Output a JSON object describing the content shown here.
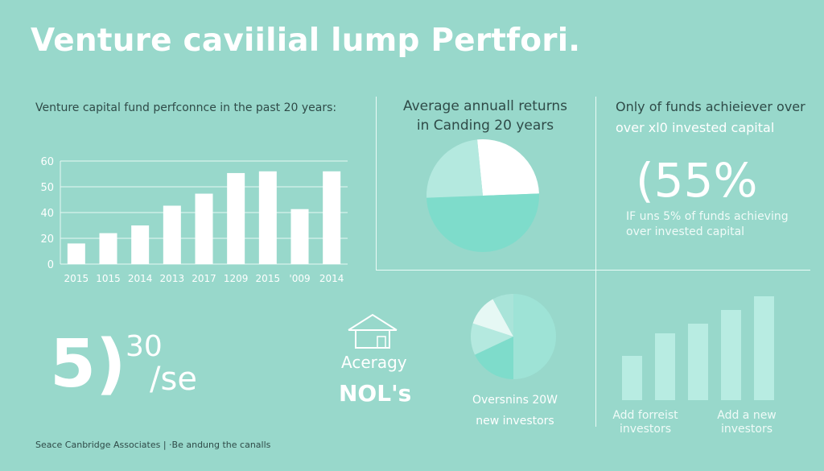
{
  "title": "Venture caviilial lump Pertfori.",
  "bar_section": {
    "subtitle": "Venture capital fund perfconnce in the past 20 years:"
  },
  "pie_section": {
    "heading_line1": "Average annuall returns",
    "heading_line2": "in Canding 20 years"
  },
  "stat_section": {
    "heading_line1": "Only of funds achieiever over",
    "heading_line2": "over xl0 invested capital",
    "big_value": "(55%",
    "sub_line1": "IF uns 5% of funds achieving",
    "sub_line2": "over invested capital"
  },
  "bottom_left": {
    "big": "5)",
    "sup": "30",
    "rest": "/se"
  },
  "house_block": {
    "icon": "house-icon",
    "line1": "Aceragy",
    "line2": "NOL's"
  },
  "small_pie_block": {
    "line1": "Oversnins 20W",
    "line2": "new investors"
  },
  "growth_block": {
    "label_left_1": "Add forreist",
    "label_left_2": "investors",
    "label_right_1": "Add a new",
    "label_right_2": "investors"
  },
  "footer": "Seace Canbridge Associates | ·Be andung the canalls",
  "colors": {
    "background": "#98d8cb",
    "pie_teal": "#7edccb",
    "pie_light": "#b4e9df",
    "white": "#ffffff"
  },
  "chart_data": [
    {
      "type": "bar",
      "title": "Venture capital fund perfconnce in the past 20 years:",
      "categories": [
        "2015",
        "1015",
        "2014",
        "2013",
        "2017",
        "1209",
        "2015",
        "'009",
        "2014"
      ],
      "values": [
        12,
        18,
        22.5,
        34,
        41,
        53,
        54,
        32,
        54
      ],
      "yticks": [
        "0",
        "20",
        "40",
        "50",
        "60"
      ],
      "ylim": [
        0,
        60
      ],
      "grid": true
    },
    {
      "type": "pie",
      "title": "Average annuall returns in Canding 20 years",
      "values": [
        26,
        50,
        24
      ],
      "colors": [
        "#ffffff",
        "#7edccb",
        "#b4e9df"
      ]
    },
    {
      "type": "pie",
      "title": "Oversnins 20W new investors",
      "values": [
        50,
        18,
        12,
        12,
        8
      ],
      "colors": [
        "#9ee3d6",
        "#7edccb",
        "#b4e9df",
        "#e6f8f4",
        "#a9e4d9"
      ]
    },
    {
      "type": "bar",
      "title": "Add forreist investors / Add a new investors",
      "values": [
        55,
        83,
        95,
        112,
        129
      ],
      "ylim": [
        0,
        140
      ]
    }
  ]
}
